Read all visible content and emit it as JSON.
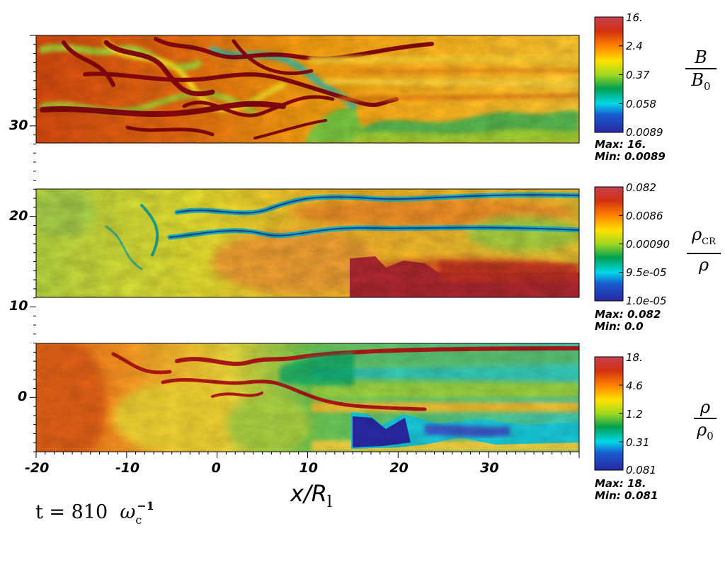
{
  "chart_data": {
    "type": "heatmap",
    "xlabel_main": "x/R",
    "xlabel_sub": "l",
    "x_ticks": [
      "-20",
      "-10",
      "0",
      "10",
      "20",
      "30"
    ],
    "y_ticks": [
      "0",
      "10",
      "20",
      "30"
    ],
    "xlim": [
      -20,
      40
    ],
    "ylim": [
      -6,
      40
    ],
    "panels": [
      {
        "name": "B",
        "y_range": [
          28,
          40
        ],
        "label_num": "B",
        "label_den": "B",
        "label_den_sub": "0",
        "colorbar_ticks": [
          "16.",
          "2.4",
          "0.37",
          "0.058",
          "0.0089"
        ],
        "max": "Max:  16.",
        "min": "Min:  0.0089"
      },
      {
        "name": "rhoCR",
        "y_range": [
          11,
          23
        ],
        "label_num": "ρ",
        "label_num_sub": "CR",
        "label_den": "ρ",
        "colorbar_ticks": [
          "0.082",
          "0.0086",
          "0.00090",
          "9.5e-05",
          "1.0e-05"
        ],
        "max": "Max:  0.082",
        "min": "Min:  0.0"
      },
      {
        "name": "rho",
        "y_range": [
          -6,
          6
        ],
        "label_num": "ρ",
        "label_den": "ρ",
        "label_den_sub": "0",
        "colorbar_ticks": [
          "18.",
          "4.6",
          "1.2",
          "0.31",
          "0.081"
        ],
        "max": "Max:  18.",
        "min": "Min:  0.081"
      }
    ]
  },
  "time_label": {
    "prefix": "t = 810",
    "omega": "ω",
    "sub": "c",
    "sup": "−1"
  },
  "colors": {
    "colormap": [
      "#2a2a9e",
      "#00d8e8",
      "#00a050",
      "#a0d820",
      "#ffe000",
      "#ff8000",
      "#d23010",
      "#a01030"
    ]
  }
}
